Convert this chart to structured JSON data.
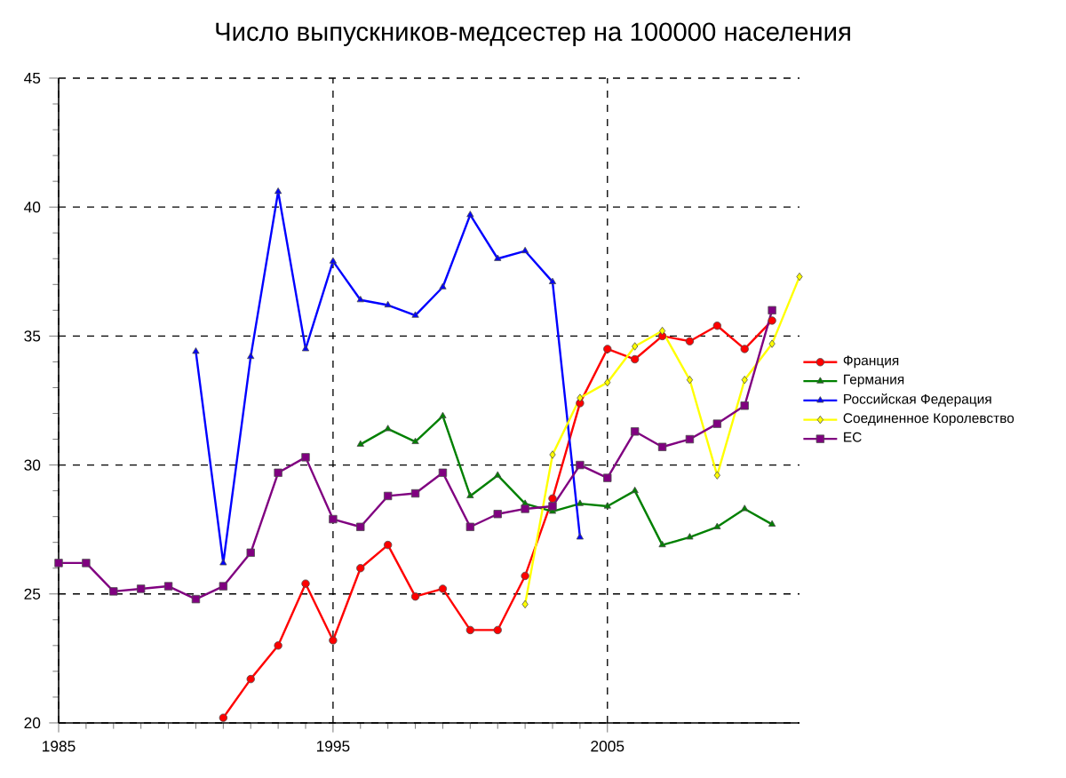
{
  "chart_data": {
    "type": "line",
    "title": "Число выпускников-медсестер на 100000 населения",
    "xlim": [
      1985,
      2012
    ],
    "xticks": [
      1985,
      1995,
      2005
    ],
    "ylim": [
      20,
      45
    ],
    "yticks": [
      20,
      25,
      30,
      35,
      40,
      45
    ],
    "grid": true,
    "legend": "right",
    "line_style": "solid",
    "series": [
      {
        "name": "Франция",
        "color": "#ff0000",
        "marker": "circle",
        "x": [
          1991,
          1992,
          1993,
          1994,
          1995,
          1996,
          1997,
          1998,
          1999,
          2000,
          2001,
          2002,
          2003,
          2004,
          2005,
          2006,
          2007,
          2008,
          2009,
          2010,
          2011
        ],
        "values": [
          20.2,
          21.7,
          23.0,
          25.4,
          23.2,
          26.0,
          26.9,
          24.9,
          25.2,
          23.6,
          23.6,
          25.7,
          28.7,
          32.4,
          34.5,
          34.1,
          35.0,
          34.8,
          35.4,
          34.5,
          35.6
        ]
      },
      {
        "name": "Германия",
        "color": "#008000",
        "marker": "triangle-down",
        "x": [
          1996,
          1997,
          1998,
          1999,
          2000,
          2001,
          2002,
          2003,
          2004,
          2005,
          2006,
          2007,
          2008,
          2009,
          2010,
          2011
        ],
        "values": [
          30.8,
          31.4,
          30.9,
          31.9,
          28.8,
          29.6,
          28.5,
          28.2,
          28.5,
          28.4,
          29.0,
          26.9,
          27.2,
          27.6,
          28.3,
          27.7
        ]
      },
      {
        "name": "Российская Федерация",
        "color": "#0000ff",
        "marker": "triangle",
        "x": [
          1990,
          1991,
          1992,
          1993,
          1994,
          1995,
          1996,
          1997,
          1998,
          1999,
          2000,
          2001,
          2002,
          2003,
          2004
        ],
        "values": [
          34.4,
          26.2,
          34.2,
          40.6,
          34.5,
          37.9,
          36.4,
          36.2,
          35.8,
          36.9,
          39.7,
          38.0,
          38.3,
          37.1,
          27.2
        ]
      },
      {
        "name": "Соединенное Королевство",
        "color": "#ffff00",
        "marker": "diamond",
        "x": [
          2002,
          2003,
          2004,
          2005,
          2006,
          2007,
          2008,
          2009,
          2010,
          2011,
          2012
        ],
        "values": [
          24.6,
          30.4,
          32.6,
          33.2,
          34.6,
          35.2,
          33.3,
          29.6,
          33.3,
          34.7,
          37.3
        ]
      },
      {
        "name": "ЕС",
        "color": "#800080",
        "marker": "square",
        "x": [
          1985,
          1986,
          1987,
          1988,
          1989,
          1990,
          1991,
          1992,
          1993,
          1994,
          1995,
          1996,
          1997,
          1998,
          1999,
          2000,
          2001,
          2002,
          2003,
          2004,
          2005,
          2006,
          2007,
          2008,
          2009,
          2010,
          2011
        ],
        "values": [
          26.2,
          26.2,
          25.1,
          25.2,
          25.3,
          24.8,
          25.3,
          26.6,
          29.7,
          30.3,
          27.9,
          27.6,
          28.8,
          28.9,
          29.7,
          27.6,
          28.1,
          28.3,
          28.4,
          30.0,
          29.5,
          31.3,
          30.7,
          31.0,
          31.6,
          32.3,
          36.0
        ]
      }
    ]
  }
}
